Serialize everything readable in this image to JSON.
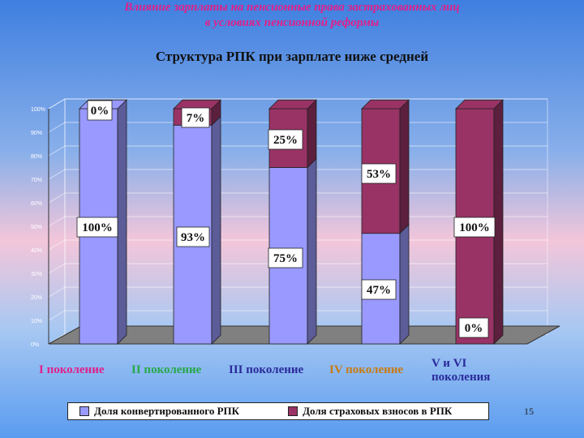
{
  "slide": {
    "title_line1": "Влияние зарплаты на пенсионные права застрахованных лиц",
    "title_line2": "в условиях пенсионной реформы",
    "page_number": "15"
  },
  "chart_data": {
    "type": "bar",
    "stacked": true,
    "percent": true,
    "title": "Структура РПК при зарплате ниже средней",
    "categories": [
      "I поколение",
      "II поколение",
      "III поколение",
      "IV поколение",
      "V и VI поколения"
    ],
    "category_colors": [
      "#e0208a",
      "#27a84a",
      "#2a2a9a",
      "#c87a10",
      "#2a2a9a"
    ],
    "series": [
      {
        "name": "Доля конвертированного РПК",
        "color": "#9999ff",
        "values": [
          100,
          93,
          75,
          47,
          0
        ],
        "labels": [
          "100%",
          "93%",
          "75%",
          "47%",
          "0%"
        ]
      },
      {
        "name": "Доля страховых взносов в РПК",
        "color": "#993366",
        "values": [
          0,
          7,
          25,
          53,
          100
        ],
        "labels": [
          "0%",
          "7%",
          "25%",
          "53%",
          "100%"
        ]
      }
    ],
    "ylim": [
      0,
      100
    ],
    "yticks": [
      "0%",
      "10%",
      "20%",
      "30%",
      "40%",
      "50%",
      "60%",
      "70%",
      "80%",
      "90%",
      "100%"
    ],
    "grid": true,
    "legend_position": "bottom"
  }
}
